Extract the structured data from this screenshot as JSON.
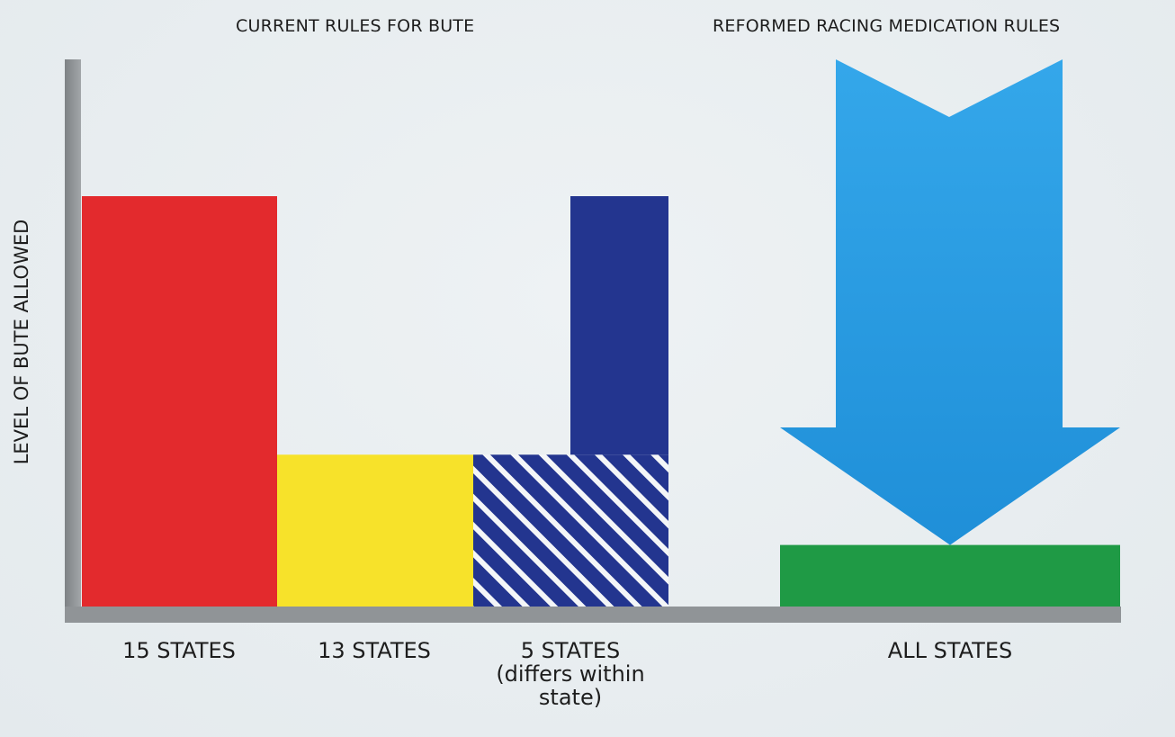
{
  "chart_data": {
    "type": "bar",
    "titles": {
      "current": "CURRENT RULES FOR BUTE",
      "reformed": "REFORMED RACING MEDICATION RULES"
    },
    "ylabel": "LEVEL OF BUTE ALLOWED",
    "xlabel": "",
    "ylim": [
      0,
      1
    ],
    "grid": false,
    "categories": [
      {
        "label": "15 STATES",
        "note": "",
        "value": 1.0
      },
      {
        "label": "13 STATES",
        "note": "",
        "value": 0.37
      },
      {
        "label": "5 STATES",
        "note": "(differs within state)",
        "value_low": 0.37,
        "value_high": 1.0
      },
      {
        "label": "ALL STATES",
        "note": "",
        "value": 0.15
      }
    ],
    "arrow": {
      "direction": "down",
      "target": "ALL STATES"
    },
    "colors": {
      "bar_15_states": "#e32a2d",
      "bar_13_states": "#f7e22a",
      "bar_5_states": "#23358f",
      "bar_all_states": "#1f9a45",
      "arrow": "#2a9fe6",
      "axis": "#8d9194"
    }
  }
}
